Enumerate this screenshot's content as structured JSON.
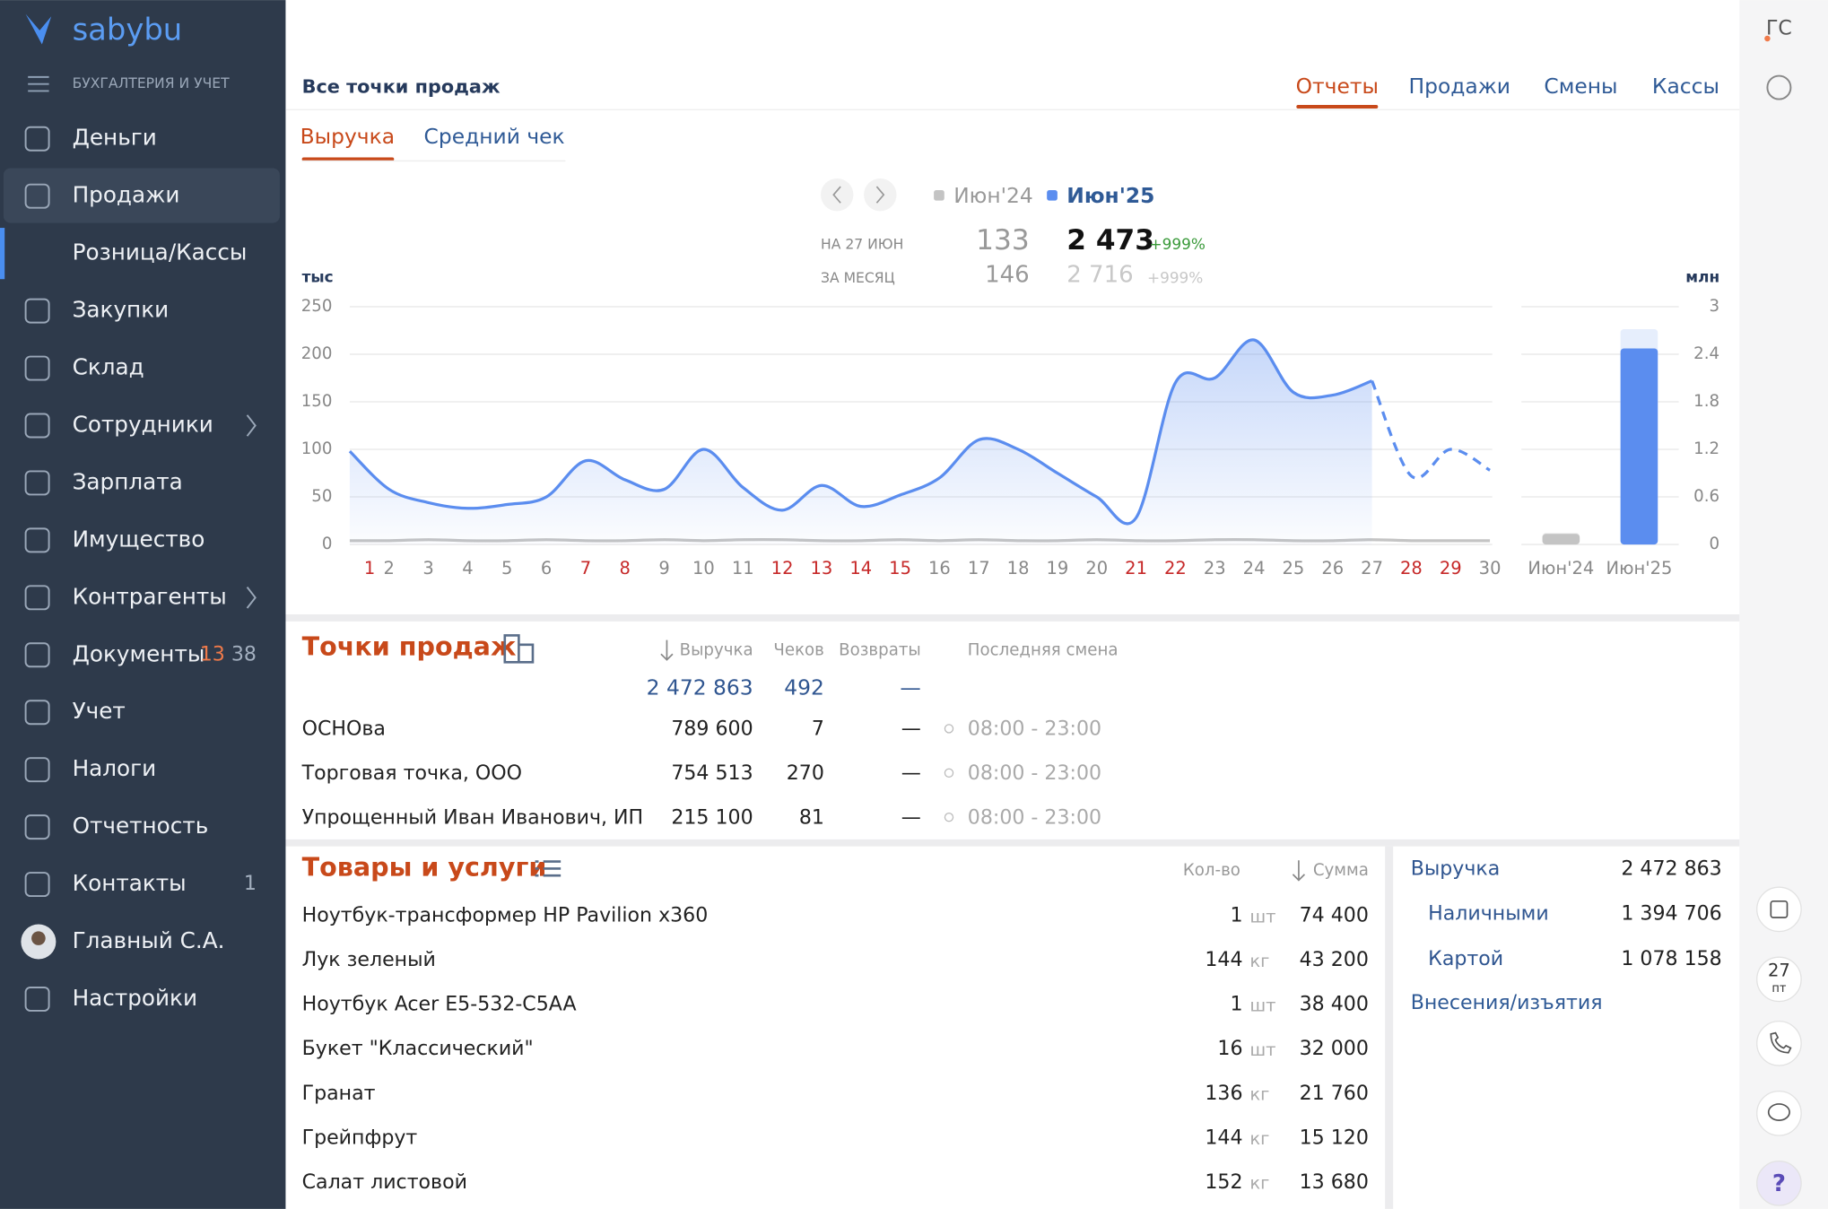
{
  "sidebar": {
    "logo": "sabybu",
    "section": "БУХГАЛТЕРИЯ И УЧЕТ",
    "menu": [
      {
        "label": "Деньги"
      },
      {
        "label": "Продажи",
        "active": true
      },
      {
        "label": "Розница/Кассы",
        "sub": true,
        "selected": true
      },
      {
        "label": "Закупки"
      },
      {
        "label": "Склад"
      },
      {
        "label": "Сотрудники",
        "chevron": true
      },
      {
        "label": "Зарплата"
      },
      {
        "label": "Имущество"
      },
      {
        "label": "Контрагенты",
        "chevron": true
      },
      {
        "label": "Документы",
        "badges": [
          13,
          38
        ]
      },
      {
        "label": "Учет"
      },
      {
        "label": "Налоги"
      },
      {
        "label": "Отчетность"
      },
      {
        "label": "Контакты",
        "badges": [
          1
        ]
      },
      {
        "label": "Главный С.А.",
        "avatar": true
      },
      {
        "label": "Настройки"
      }
    ]
  },
  "header": {
    "title": "Все точки продаж",
    "tabs": [
      "Отчеты",
      "Продажи",
      "Смены",
      "Кассы"
    ],
    "active_tab": 0
  },
  "subtabs": {
    "items": [
      "Выручка",
      "Средний чек"
    ],
    "active": 0
  },
  "summary": {
    "rows": [
      {
        "label": "НА 27 ИЮН",
        "prev": "133",
        "cur": "2 473",
        "change": "+999%"
      },
      {
        "label": "ЗА МЕСЯЦ",
        "prev": "146",
        "cur": "2 716",
        "change": "+999%"
      }
    ]
  },
  "chart_data": [
    {
      "type": "line",
      "y_label": "тыс",
      "x": [
        1,
        2,
        3,
        4,
        5,
        6,
        7,
        8,
        9,
        10,
        11,
        12,
        13,
        14,
        15,
        16,
        17,
        18,
        19,
        20,
        21,
        22,
        23,
        24,
        25,
        26,
        27,
        28,
        29,
        30
      ],
      "x_red": [
        true,
        false,
        false,
        false,
        false,
        false,
        true,
        true,
        false,
        false,
        false,
        true,
        true,
        true,
        true,
        false,
        false,
        false,
        false,
        false,
        true,
        true,
        false,
        false,
        false,
        false,
        false,
        true,
        true,
        false
      ],
      "ylim": [
        0,
        250
      ],
      "yticks": [
        0,
        50,
        100,
        150,
        200,
        250
      ],
      "grid": true,
      "forecast_from": 26,
      "series": [
        {
          "name": "Июн'24",
          "color": "#c4c4c4",
          "values": [
            4,
            4,
            5,
            4,
            4,
            5,
            4,
            4,
            5,
            4,
            5,
            5,
            4,
            4,
            5,
            4,
            5,
            4,
            4,
            5,
            4,
            4,
            5,
            5,
            4,
            4,
            5,
            4,
            4,
            4
          ]
        },
        {
          "name": "Июн'25",
          "color": "#5b8def",
          "values": [
            98,
            58,
            44,
            38,
            42,
            50,
            88,
            68,
            58,
            100,
            60,
            36,
            62,
            40,
            52,
            70,
            110,
            100,
            75,
            50,
            28,
            170,
            175,
            215,
            160,
            157,
            172,
            72,
            100,
            78
          ]
        }
      ]
    },
    {
      "type": "bar",
      "y_label": "млн",
      "categories": [
        "Июн'24",
        "Июн'25"
      ],
      "values": [
        0.133,
        2.473
      ],
      "month_values": [
        0.146,
        2.716
      ],
      "colors": [
        "#c4c4c4",
        "#5b8def"
      ],
      "month_colors": [
        "#eeeeee",
        "#e6eefc"
      ],
      "ylim": [
        0,
        3
      ],
      "yticks": [
        0,
        0.6,
        1.2,
        1.8,
        2.4,
        3
      ],
      "grid": true
    }
  ],
  "points": {
    "title": "Точки продаж",
    "columns": [
      "Выручка",
      "Чеков",
      "Возвраты",
      "Последняя смена"
    ],
    "total": [
      "2 472 863",
      492,
      "—"
    ],
    "rows": [
      {
        "name": "ОСНОва",
        "revenue": "789 600",
        "checks": 7,
        "returns": "—",
        "shift": "08:00 - 23:00"
      },
      {
        "name": "Торговая точка, ООО",
        "revenue": "754 513",
        "checks": 270,
        "returns": "—",
        "shift": "08:00 - 23:00"
      },
      {
        "name": "Упрощенный Иван Иванович, ИП",
        "revenue": "215 100",
        "checks": 81,
        "returns": "—",
        "shift": "08:00 - 23:00"
      }
    ]
  },
  "goods": {
    "title": "Товары и услуги",
    "columns": [
      "Кол-во",
      "Сумма"
    ],
    "rows": [
      {
        "name": "Ноутбук-трансформер HP Pavilion x360",
        "qty": 1,
        "unit": "шт",
        "sum": "74 400"
      },
      {
        "name": "Лук зеленый",
        "qty": 144,
        "unit": "кг",
        "sum": "43 200"
      },
      {
        "name": "Ноутбук Acer E5-532-C5AA",
        "qty": 1,
        "unit": "шт",
        "sum": "38 400"
      },
      {
        "name": "Букет \"Классический\"",
        "qty": 16,
        "unit": "шт",
        "sum": "32 000"
      },
      {
        "name": "Гранат",
        "qty": 136,
        "unit": "кг",
        "sum": "21 760"
      },
      {
        "name": "Грейпфрут",
        "qty": 144,
        "unit": "кг",
        "sum": "15 120"
      },
      {
        "name": "Салат листовой",
        "qty": 152,
        "unit": "кг",
        "sum": "13 680"
      }
    ]
  },
  "payments": {
    "rows": [
      {
        "label": "Выручка",
        "value": "2 472 863"
      },
      {
        "label": "Наличными",
        "value": "1 394 706",
        "indent": true
      },
      {
        "label": "Картой",
        "value": "1 078 158",
        "indent": true
      }
    ],
    "link": "Внесения/изъятия"
  },
  "rail": {
    "user": "ГС",
    "day": 27,
    "weekday": "пт",
    "help": "?"
  }
}
